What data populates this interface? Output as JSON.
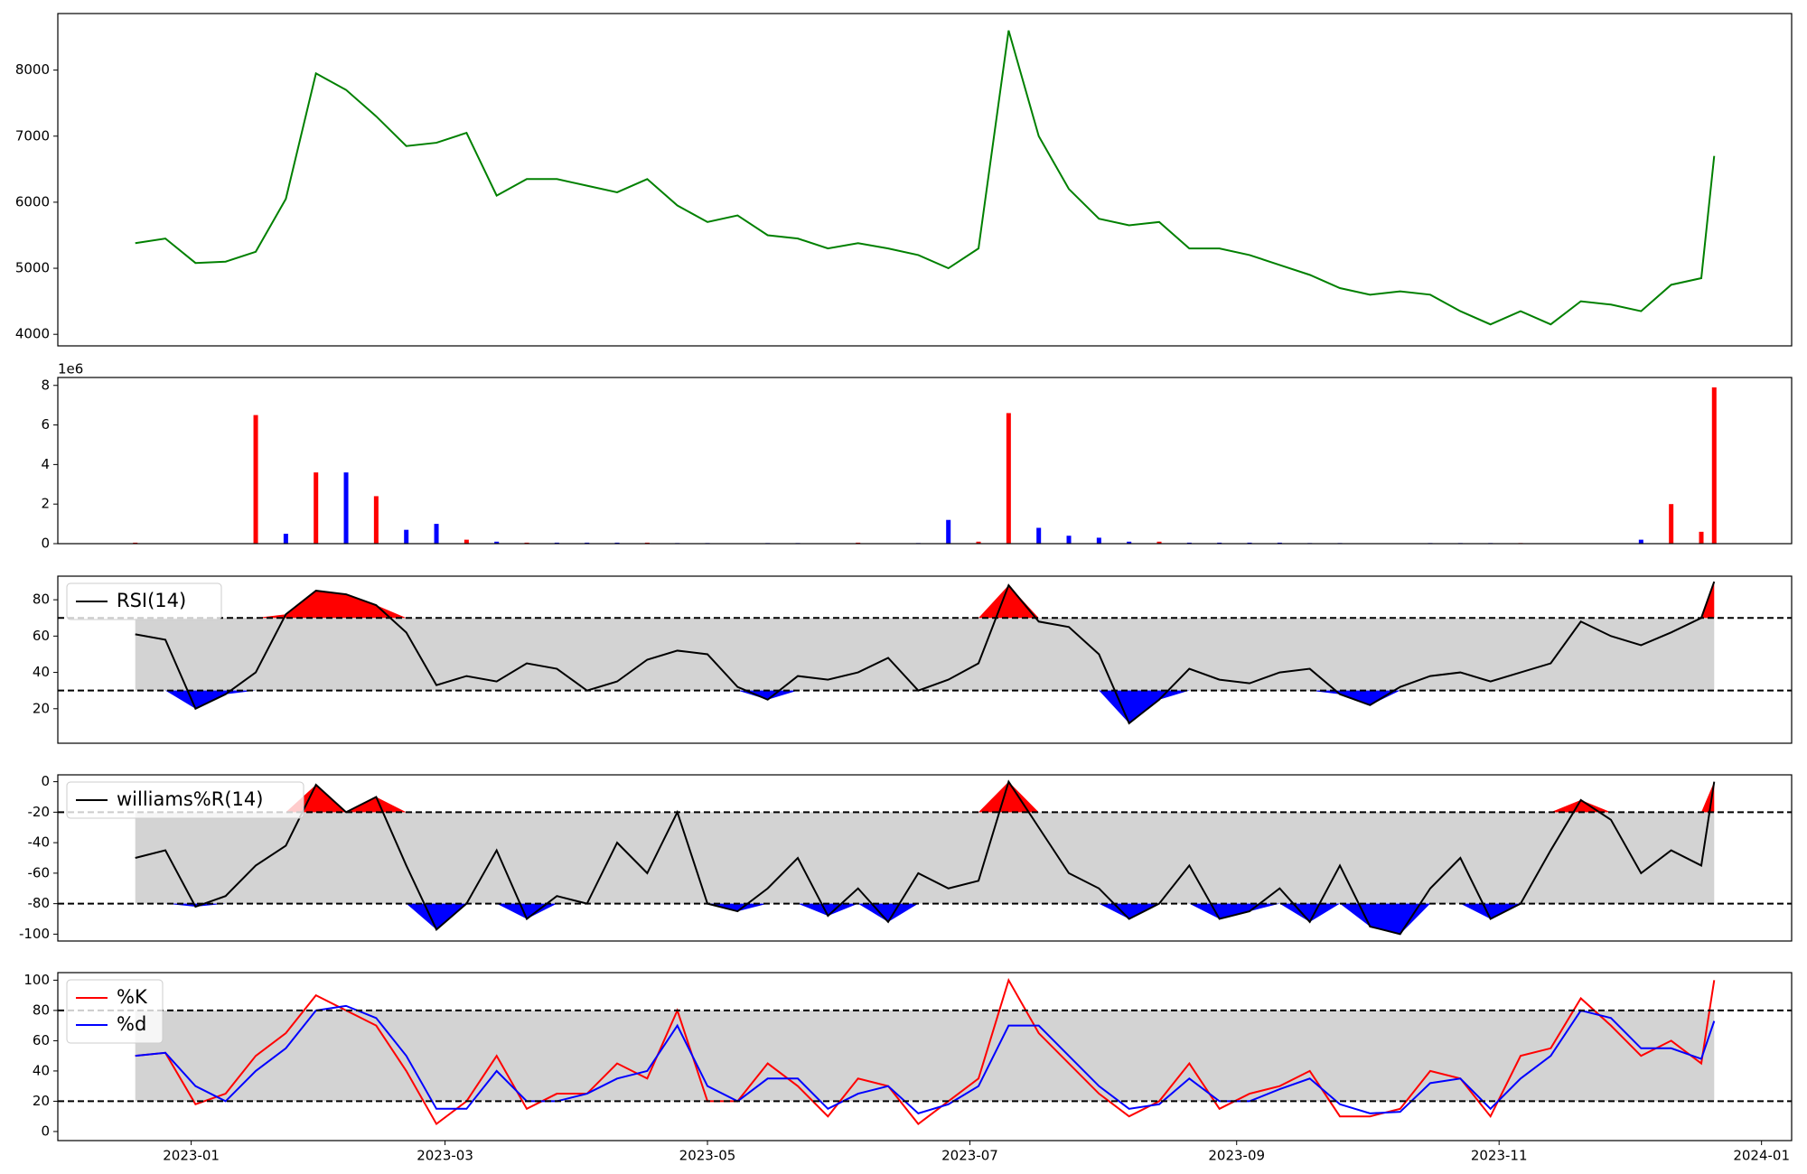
{
  "chart_data": [
    {
      "type": "line",
      "xlim": [
        -31,
        372
      ],
      "x": [
        -13,
        -6,
        1,
        8,
        15,
        22,
        29,
        36,
        43,
        50,
        57,
        64,
        71,
        78,
        85,
        92,
        99,
        106,
        113,
        120,
        127,
        134,
        141,
        148,
        155,
        162,
        169,
        176,
        183,
        190,
        197,
        204,
        211,
        218,
        225,
        232,
        239,
        246,
        253,
        260,
        267,
        274,
        281,
        288,
        295,
        302,
        309,
        316,
        323,
        330,
        337,
        344,
        351,
        354
      ],
      "series": [
        {
          "color": "green",
          "values": [
            5380,
            5450,
            5080,
            5100,
            5250,
            6050,
            7950,
            7700,
            7300,
            6850,
            6900,
            7050,
            6100,
            6350,
            6350,
            6250,
            6150,
            6350,
            5950,
            5700,
            5800,
            5500,
            5450,
            5300,
            5380,
            5300,
            5200,
            5000,
            5300,
            8600,
            7000,
            6200,
            5750,
            5650,
            5700,
            5300,
            5300,
            5200,
            5050,
            4900,
            4700,
            4600,
            4650,
            4600,
            4350,
            4150,
            4350,
            4150,
            4500,
            4450,
            4350,
            4750,
            4850,
            6700
          ]
        }
      ],
      "ylim": [
        3825,
        8856
      ],
      "yticks": [
        4000,
        5000,
        6000,
        7000,
        8000
      ]
    },
    {
      "type": "bar",
      "xlim": [
        -31,
        372
      ],
      "offset_label": "1e6",
      "x": [
        -13,
        -6,
        1,
        8,
        15,
        22,
        29,
        36,
        43,
        50,
        57,
        64,
        71,
        78,
        85,
        92,
        99,
        106,
        113,
        120,
        127,
        134,
        141,
        148,
        155,
        162,
        169,
        176,
        183,
        190,
        197,
        204,
        211,
        218,
        225,
        232,
        239,
        246,
        253,
        260,
        267,
        274,
        281,
        288,
        295,
        302,
        309,
        316,
        323,
        330,
        337,
        344,
        351,
        354
      ],
      "values": [
        0.05,
        0.02,
        0.01,
        0.01,
        6.5,
        0.5,
        3.6,
        3.6,
        2.4,
        0.7,
        1.0,
        0.2,
        0.1,
        0.05,
        0.05,
        0.05,
        0.05,
        0.05,
        0.03,
        0.03,
        0.02,
        0.03,
        0.03,
        0.02,
        0.05,
        0.02,
        0.03,
        1.2,
        0.1,
        6.6,
        0.8,
        0.4,
        0.3,
        0.1,
        0.1,
        0.05,
        0.05,
        0.05,
        0.05,
        0.03,
        0.03,
        0.02,
        0.02,
        0.03,
        0.03,
        0.03,
        0.03,
        0.02,
        0.02,
        0.02,
        0.2,
        2.0,
        0.6,
        7.9
      ],
      "colors": [
        "red",
        "blue",
        "blue",
        "blue",
        "red",
        "blue",
        "red",
        "blue",
        "red",
        "blue",
        "blue",
        "red",
        "blue",
        "red",
        "blue",
        "blue",
        "blue",
        "red",
        "blue",
        "blue",
        "red",
        "blue",
        "blue",
        "blue",
        "red",
        "blue",
        "blue",
        "blue",
        "red",
        "red",
        "blue",
        "blue",
        "blue",
        "blue",
        "red",
        "blue",
        "blue",
        "blue",
        "blue",
        "blue",
        "blue",
        "blue",
        "red",
        "blue",
        "blue",
        "blue",
        "red",
        "blue",
        "red",
        "blue",
        "blue",
        "red",
        "red",
        "red"
      ],
      "ylim": [
        0,
        8.4
      ],
      "yticks": [
        0,
        2,
        4,
        6,
        8
      ]
    },
    {
      "type": "line",
      "xlim": [
        -31,
        372
      ],
      "legend": "upper left",
      "thresholds": [
        30,
        70
      ],
      "band_color": "lightgray",
      "over_color": "red",
      "under_color": "blue",
      "x": [
        -13,
        -6,
        1,
        8,
        15,
        22,
        29,
        36,
        43,
        50,
        57,
        64,
        71,
        78,
        85,
        92,
        99,
        106,
        113,
        120,
        127,
        134,
        141,
        148,
        155,
        162,
        169,
        176,
        183,
        190,
        197,
        204,
        211,
        218,
        225,
        232,
        239,
        246,
        253,
        260,
        267,
        274,
        281,
        288,
        295,
        302,
        309,
        316,
        323,
        330,
        337,
        344,
        351,
        354
      ],
      "series": [
        {
          "name": "RSI(14)",
          "color": "black",
          "values": [
            61,
            58,
            20,
            28,
            40,
            72,
            85,
            83,
            77,
            62,
            33,
            38,
            35,
            45,
            42,
            30,
            35,
            47,
            52,
            50,
            32,
            25,
            38,
            36,
            40,
            48,
            30,
            36,
            45,
            88,
            68,
            65,
            50,
            12,
            25,
            42,
            36,
            34,
            40,
            42,
            28,
            22,
            32,
            38,
            40,
            35,
            40,
            45,
            68,
            60,
            55,
            62,
            70,
            90
          ]
        }
      ],
      "ylim": [
        1,
        93
      ],
      "yticks": [
        20,
        40,
        60,
        80
      ]
    },
    {
      "type": "line",
      "xlim": [
        -31,
        372
      ],
      "legend": "upper left",
      "thresholds": [
        -80,
        -20
      ],
      "band_color": "lightgray",
      "over_color": "red",
      "under_color": "blue",
      "x": [
        -13,
        -6,
        1,
        8,
        15,
        22,
        29,
        36,
        43,
        50,
        57,
        64,
        71,
        78,
        85,
        92,
        99,
        106,
        113,
        120,
        127,
        134,
        141,
        148,
        155,
        162,
        169,
        176,
        183,
        190,
        197,
        204,
        211,
        218,
        225,
        232,
        239,
        246,
        253,
        260,
        267,
        274,
        281,
        288,
        295,
        302,
        309,
        316,
        323,
        330,
        337,
        344,
        351,
        354
      ],
      "series": [
        {
          "name": "williams%R(14)",
          "color": "black",
          "values": [
            -50,
            -45,
            -82,
            -75,
            -55,
            -42,
            -2,
            -20,
            -10,
            -55,
            -97,
            -80,
            -45,
            -90,
            -75,
            -80,
            -40,
            -60,
            -20,
            -80,
            -85,
            -70,
            -50,
            -88,
            -70,
            -92,
            -60,
            -70,
            -65,
            0,
            -30,
            -60,
            -70,
            -90,
            -80,
            -55,
            -90,
            -85,
            -70,
            -92,
            -55,
            -95,
            -100,
            -70,
            -50,
            -90,
            -80,
            -45,
            -12,
            -25,
            -60,
            -45,
            -55,
            0
          ]
        }
      ],
      "ylim": [
        -104.5,
        4.5
      ],
      "yticks": [
        -100,
        -80,
        -60,
        -40,
        -20,
        0
      ]
    },
    {
      "type": "line",
      "xlim": [
        -31,
        372
      ],
      "legend": "upper left",
      "thresholds": [
        20,
        80
      ],
      "band_color": "lightgray",
      "x": [
        -13,
        -6,
        1,
        8,
        15,
        22,
        29,
        36,
        43,
        50,
        57,
        64,
        71,
        78,
        85,
        92,
        99,
        106,
        113,
        120,
        127,
        134,
        141,
        148,
        155,
        162,
        169,
        176,
        183,
        190,
        197,
        204,
        211,
        218,
        225,
        232,
        239,
        246,
        253,
        260,
        267,
        274,
        281,
        288,
        295,
        302,
        309,
        316,
        323,
        330,
        337,
        344,
        351,
        354
      ],
      "series": [
        {
          "name": "%K",
          "color": "red",
          "values": [
            50,
            52,
            18,
            25,
            50,
            65,
            90,
            80,
            70,
            40,
            5,
            20,
            50,
            15,
            25,
            25,
            45,
            35,
            80,
            20,
            20,
            45,
            30,
            10,
            35,
            30,
            5,
            20,
            35,
            100,
            65,
            45,
            25,
            10,
            20,
            45,
            15,
            25,
            30,
            40,
            10,
            10,
            15,
            40,
            35,
            10,
            50,
            55,
            88,
            70,
            50,
            60,
            45,
            100
          ]
        },
        {
          "name": "%d",
          "color": "blue",
          "values": [
            50,
            52,
            30,
            20,
            40,
            55,
            80,
            83,
            75,
            50,
            15,
            15,
            40,
            20,
            20,
            25,
            35,
            40,
            70,
            30,
            20,
            35,
            35,
            15,
            25,
            30,
            12,
            18,
            30,
            70,
            70,
            50,
            30,
            15,
            18,
            35,
            20,
            20,
            28,
            35,
            18,
            12,
            13,
            32,
            35,
            15,
            35,
            50,
            80,
            75,
            55,
            55,
            48,
            73
          ]
        }
      ],
      "ylim": [
        -6,
        105
      ],
      "yticks": [
        0,
        20,
        40,
        60,
        80,
        100
      ],
      "xticks": [
        {
          "value": 0,
          "label": "2023-01"
        },
        {
          "value": 59,
          "label": "2023-03"
        },
        {
          "value": 120,
          "label": "2023-05"
        },
        {
          "value": 181,
          "label": "2023-07"
        },
        {
          "value": 243,
          "label": "2023-09"
        },
        {
          "value": 304,
          "label": "2023-11"
        },
        {
          "value": 365,
          "label": "2024-01"
        }
      ]
    }
  ]
}
